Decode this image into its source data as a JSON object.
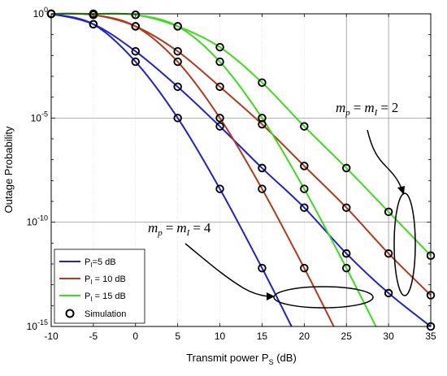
{
  "chart_data": {
    "type": "line",
    "title": "",
    "xlabel": {
      "text": "Transmit power P",
      "sub": "S",
      "suffix": " (dB)"
    },
    "ylabel": "Outage Probability",
    "xlim": [
      -10,
      35
    ],
    "ylim_log10": [
      -15,
      0
    ],
    "yscale": "log",
    "x_ticks": [
      "-10",
      "-5",
      "0",
      "5",
      "10",
      "15",
      "20",
      "25",
      "30",
      "35"
    ],
    "y_ticks": [
      {
        "base": "10",
        "exp": "0",
        "value": 0
      },
      {
        "base": "10",
        "exp": "-5",
        "value": -5
      },
      {
        "base": "10",
        "exp": "-10",
        "value": -10
      },
      {
        "base": "10",
        "exp": "-15",
        "value": -15
      }
    ],
    "grid": true,
    "legend_position": "bottom-left",
    "legend": [
      {
        "label": "P",
        "sub": "I",
        "suffix": "=5 dB",
        "color": "#1f22d1",
        "kind": "line"
      },
      {
        "label": "P",
        "sub": "I",
        "suffix": " = 10 dB",
        "color": "#b33a1c",
        "kind": "line"
      },
      {
        "label": "P",
        "sub": "I",
        "suffix": " = 15 dB",
        "color": "#3bdc18",
        "kind": "line"
      },
      {
        "label": "Simulation",
        "kind": "marker"
      }
    ],
    "series": [
      {
        "name": "PI=5 dB, mp=mI=2",
        "color": "#1f22d1",
        "x": [
          -10,
          -5,
          0,
          5,
          10,
          15,
          20,
          25,
          30,
          35
        ],
        "log10_y": [
          0,
          -0.5,
          -1.8,
          -3.5,
          -5.4,
          -7.4,
          -9.3,
          -11.5,
          -13.4,
          -15.0
        ],
        "markers": [
          -10,
          -5,
          0,
          5,
          10,
          15,
          20,
          25,
          30,
          35
        ]
      },
      {
        "name": "PI=10 dB, mp=mI=2",
        "color": "#b33a1c",
        "x": [
          -10,
          -5,
          0,
          5,
          10,
          15,
          20,
          25,
          30,
          35
        ],
        "log10_y": [
          0,
          -0.05,
          -0.6,
          -1.8,
          -3.5,
          -5.3,
          -7.3,
          -9.3,
          -11.5,
          -13.5
        ],
        "markers": [
          -10,
          -5,
          0,
          5,
          10,
          15,
          20,
          25,
          30,
          35
        ]
      },
      {
        "name": "PI=15 dB, mp=mI=2",
        "color": "#3bdc18",
        "x": [
          -10,
          -5,
          0,
          5,
          10,
          15,
          20,
          25,
          30,
          35
        ],
        "log10_y": [
          0,
          0,
          -0.05,
          -0.6,
          -1.6,
          -3.3,
          -5.4,
          -7.4,
          -9.5,
          -11.6
        ],
        "markers": [
          -10,
          -5,
          0,
          5,
          10,
          15,
          20,
          25,
          30,
          35
        ]
      },
      {
        "name": "PI=5 dB, mp=mI=4",
        "color": "#1f22d1",
        "x": [
          -10,
          -5,
          0,
          5,
          10,
          15,
          18.5
        ],
        "log10_y": [
          0,
          -0.5,
          -2.3,
          -5.0,
          -8.4,
          -12.2,
          -15.0
        ],
        "markers": [
          -10,
          -5,
          0,
          5,
          10,
          15
        ]
      },
      {
        "name": "PI=10 dB, mp=mI=4",
        "color": "#b33a1c",
        "x": [
          -10,
          -5,
          0,
          5,
          10,
          15,
          20,
          23.5
        ],
        "log10_y": [
          0,
          -0.05,
          -0.6,
          -2.3,
          -5.0,
          -8.4,
          -12.2,
          -15.0
        ],
        "markers": [
          -10,
          -5,
          0,
          5,
          10,
          15,
          20
        ]
      },
      {
        "name": "PI=15 dB, mp=mI=4",
        "color": "#3bdc18",
        "x": [
          -10,
          -5,
          0,
          5,
          10,
          15,
          20,
          25,
          28.5
        ],
        "log10_y": [
          0,
          0,
          -0.05,
          -0.6,
          -2.3,
          -5.0,
          -8.4,
          -12.2,
          -15.0
        ],
        "markers": [
          -10,
          -5,
          0,
          5,
          10,
          15,
          20,
          25
        ]
      }
    ],
    "annotations": [
      {
        "id": "m2",
        "mp": "m",
        "mp_sub": "p",
        "mI": "m",
        "mI_sub": "I",
        "eq": "=",
        "val": "2"
      },
      {
        "id": "m4",
        "mp": "m",
        "mp_sub": "p",
        "mI": "m",
        "mI_sub": "I",
        "eq": "=",
        "val": "4"
      }
    ]
  }
}
